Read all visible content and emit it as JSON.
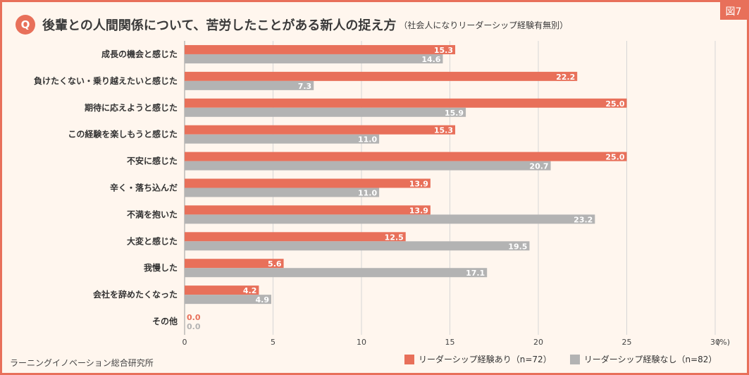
{
  "figure_tag": "図7",
  "q_mark": "Q",
  "title": "後輩との人間関係について、苦労したことがある新人の捉え方",
  "subtitle": "（社会人になりリーダーシップ経験有無別）",
  "source": "ラーニングイノベーション総合研究所",
  "colors": {
    "with": "#e8705a",
    "without": "#b3b3b3",
    "frame": "#e8705a",
    "background": "#fff6ee"
  },
  "chart_data": {
    "type": "bar",
    "orientation": "horizontal",
    "categories": [
      "成長の機会と感じた",
      "負けたくない・乗り越えたいと感じた",
      "期待に応えようと感じた",
      "この経験を楽しもうと感じた",
      "不安に感じた",
      "辛く・落ち込んだ",
      "不満を抱いた",
      "大変と感じた",
      "我慢した",
      "会社を辞めたくなった",
      "その他"
    ],
    "series": [
      {
        "name": "リーダーシップ経験あり（n=72）",
        "values": [
          15.3,
          22.2,
          25.0,
          15.3,
          25.0,
          13.9,
          13.9,
          12.5,
          5.6,
          4.2,
          0.0
        ]
      },
      {
        "name": "リーダーシップ経験なし（n=82）",
        "values": [
          14.6,
          7.3,
          15.9,
          11.0,
          20.7,
          11.0,
          23.2,
          19.5,
          17.1,
          4.9,
          0.0
        ]
      }
    ],
    "xlim": [
      0,
      30
    ],
    "xticks": [
      "0",
      "5",
      "10",
      "15",
      "20",
      "25",
      "30"
    ],
    "unit_label": "(%)"
  }
}
